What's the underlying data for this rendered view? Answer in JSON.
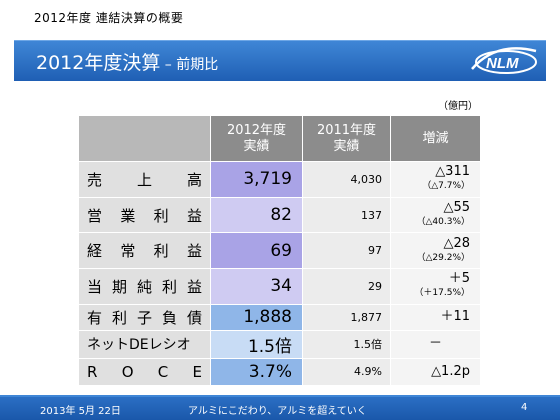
{
  "header": {
    "top_label": "2012年度 連結決算の概要",
    "title_main": "2012年度決算",
    "title_sub": " – 前期比",
    "logo_text": "NLM"
  },
  "table": {
    "unit": "（億円）",
    "columns": {
      "fy2012": "2012年度\n実績",
      "fy2011": "2011年度\n実績",
      "diff": "増減"
    },
    "rows": [
      {
        "label": [
          "売",
          "上",
          "高"
        ],
        "fy2012": "3,719",
        "fy2011": "4,030",
        "diff": "△311",
        "pct": "（△7.7%）",
        "color": "#a9a3e6"
      },
      {
        "label": [
          "営",
          "業",
          "利",
          "益"
        ],
        "fy2012": "82",
        "fy2011": "137",
        "diff": "△55",
        "pct": "（△40.3%）",
        "color": "#cfcbf2"
      },
      {
        "label": [
          "経",
          "常",
          "利",
          "益"
        ],
        "fy2012": "69",
        "fy2011": "97",
        "diff": "△28",
        "pct": "（△29.2%）",
        "color": "#a9a3e6"
      },
      {
        "label": [
          "当",
          "期",
          "純",
          "利",
          "益"
        ],
        "fy2012": "34",
        "fy2011": "29",
        "diff": "＋5",
        "pct": "（＋17.5%）",
        "color": "#cfcbf2"
      },
      {
        "label": [
          "有",
          "利",
          "子",
          "負",
          "債"
        ],
        "fy2012": "1,888",
        "fy2011": "1,877",
        "diff": "＋11",
        "pct": "",
        "color": "#8fb6e8"
      },
      {
        "label": [
          "ネットDEレシオ"
        ],
        "fy2012": "1.5倍",
        "fy2011": "1.5倍",
        "diff": "－",
        "pct": "",
        "color": "#c8dcf5"
      },
      {
        "label": [
          "R",
          "O",
          "C",
          "E"
        ],
        "fy2012": "3.7%",
        "fy2011": "4.9%",
        "diff": "△1.2p",
        "pct": "",
        "color": "#8fb6e8"
      }
    ]
  },
  "footer": {
    "date": "2013年 5月 22日",
    "slogan": "アルミにこだわり、アルミを超えていく",
    "page": "4"
  }
}
